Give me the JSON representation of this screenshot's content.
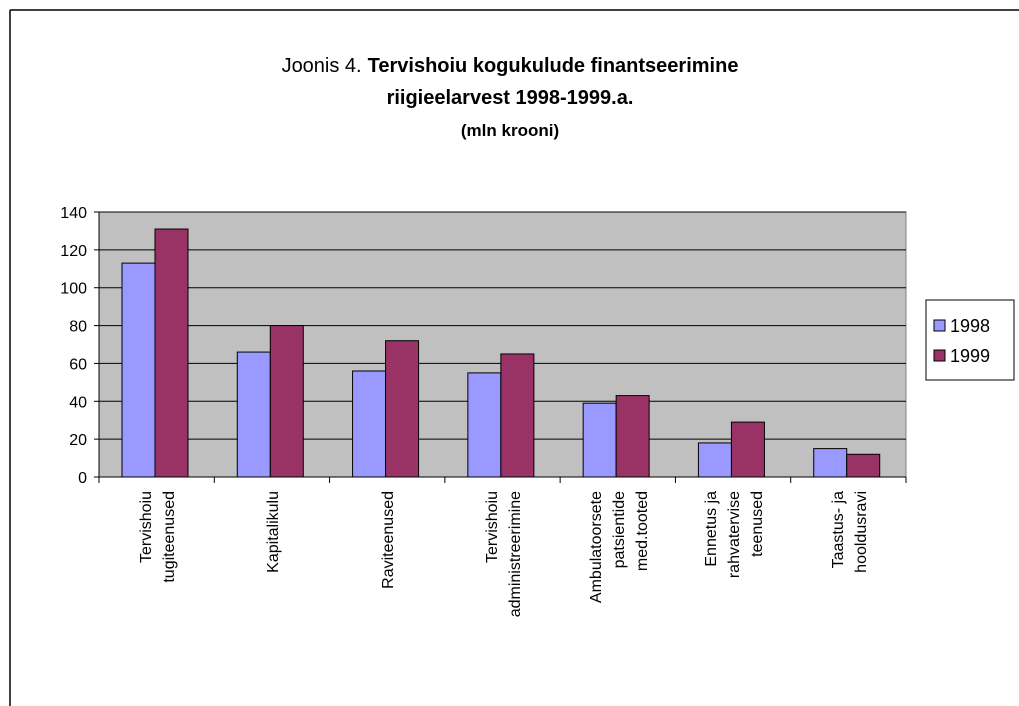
{
  "chart_data": {
    "type": "bar",
    "title": [
      "Joonis 4.",
      "Tervishoiu kogukulude finantseerimine",
      "riigieelarvest 1998-1999.a."
    ],
    "subtitle": "(mln krooni)",
    "categories": [
      [
        "Tervishoiu",
        "tugiteenused"
      ],
      [
        "Kapitalikulu"
      ],
      [
        "Raviteenused"
      ],
      [
        "Tervishoiu",
        "administreerimine"
      ],
      [
        "Ambulatoorsete",
        "patsientide",
        "med.tooted"
      ],
      [
        "Ennetus ja",
        "rahvatervise",
        "teenused"
      ],
      [
        "Taastus- ja",
        "hooldusravi"
      ]
    ],
    "series": [
      {
        "name": "1998",
        "color": "#9999ff",
        "values": [
          113,
          66,
          56,
          55,
          39,
          18,
          15
        ]
      },
      {
        "name": "1999",
        "color": "#993366",
        "values": [
          131,
          80,
          72,
          65,
          43,
          29,
          12
        ]
      }
    ],
    "ylim": [
      0,
      140
    ],
    "yticks": [
      0,
      20,
      40,
      60,
      80,
      100,
      120,
      140
    ],
    "grid": true,
    "legend": "right"
  }
}
